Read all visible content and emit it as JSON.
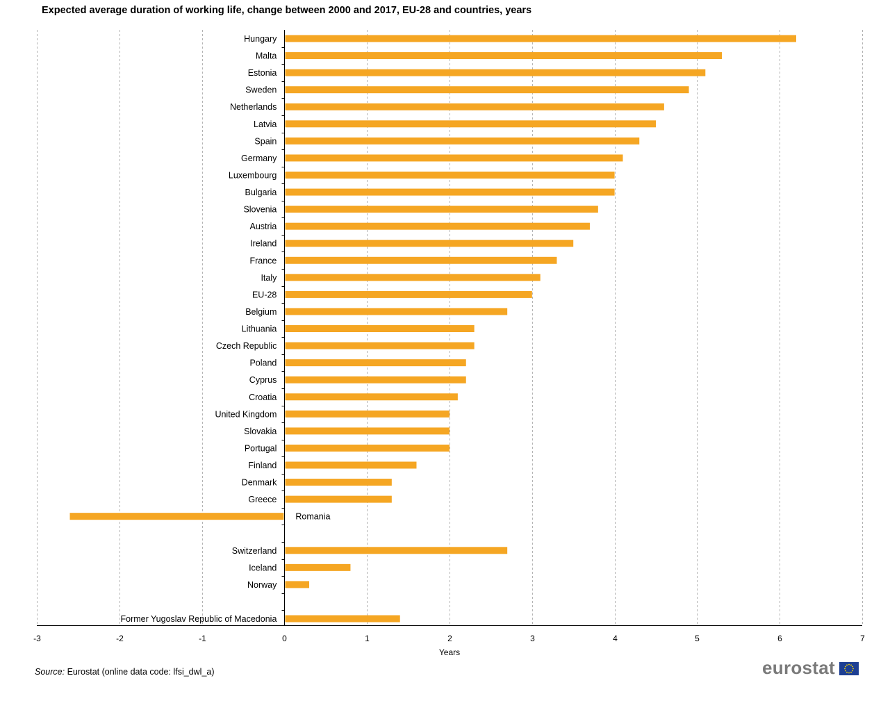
{
  "chart_title": "Expected average duration of working life, change between 2000 and 2017, EU-28 and countries, years",
  "source": {
    "label": "Source:",
    "text": "Eurostat (online data code: lfsi_dwl_a)"
  },
  "brand": {
    "wordmark": "eurostat",
    "flag_icon": "eu-flag-icon"
  },
  "colors": {
    "bar": "#F5A623",
    "grid": "#b4b4b4",
    "axis": "#000000"
  },
  "chart_data": {
    "type": "bar",
    "orientation": "horizontal",
    "title": "Expected average duration of working life, change between 2000 and 2017, EU-28 and countries, years",
    "xlabel": "Years",
    "ylabel": "",
    "xlim": [
      -3,
      7
    ],
    "xticks": [
      -3,
      -2,
      -1,
      0,
      1,
      2,
      3,
      4,
      5,
      6,
      7
    ],
    "grid": "vertical dashed",
    "categories": [
      "Hungary",
      "Malta",
      "Estonia",
      "Sweden",
      "Netherlands",
      "Latvia",
      "Spain",
      "Germany",
      "Luxembourg",
      "Bulgaria",
      "Slovenia",
      "Austria",
      "Ireland",
      "France",
      "Italy",
      "EU-28",
      "Belgium",
      "Lithuania",
      "Czech Republic",
      "Poland",
      "Cyprus",
      "Croatia",
      "United Kingdom",
      "Slovakia",
      "Portugal",
      "Finland",
      "Denmark",
      "Greece",
      "Romania",
      "",
      "Switzerland",
      "Iceland",
      "Norway",
      "",
      "Former Yugoslav Republic of Macedonia"
    ],
    "values": [
      6.2,
      5.3,
      5.1,
      4.9,
      4.6,
      4.5,
      4.3,
      4.1,
      4.0,
      4.0,
      3.8,
      3.7,
      3.5,
      3.3,
      3.1,
      3.0,
      2.7,
      2.3,
      2.3,
      2.2,
      2.2,
      2.1,
      2.0,
      2.0,
      2.0,
      1.6,
      1.3,
      1.3,
      -2.6,
      null,
      2.7,
      0.8,
      0.3,
      null,
      1.4
    ]
  }
}
